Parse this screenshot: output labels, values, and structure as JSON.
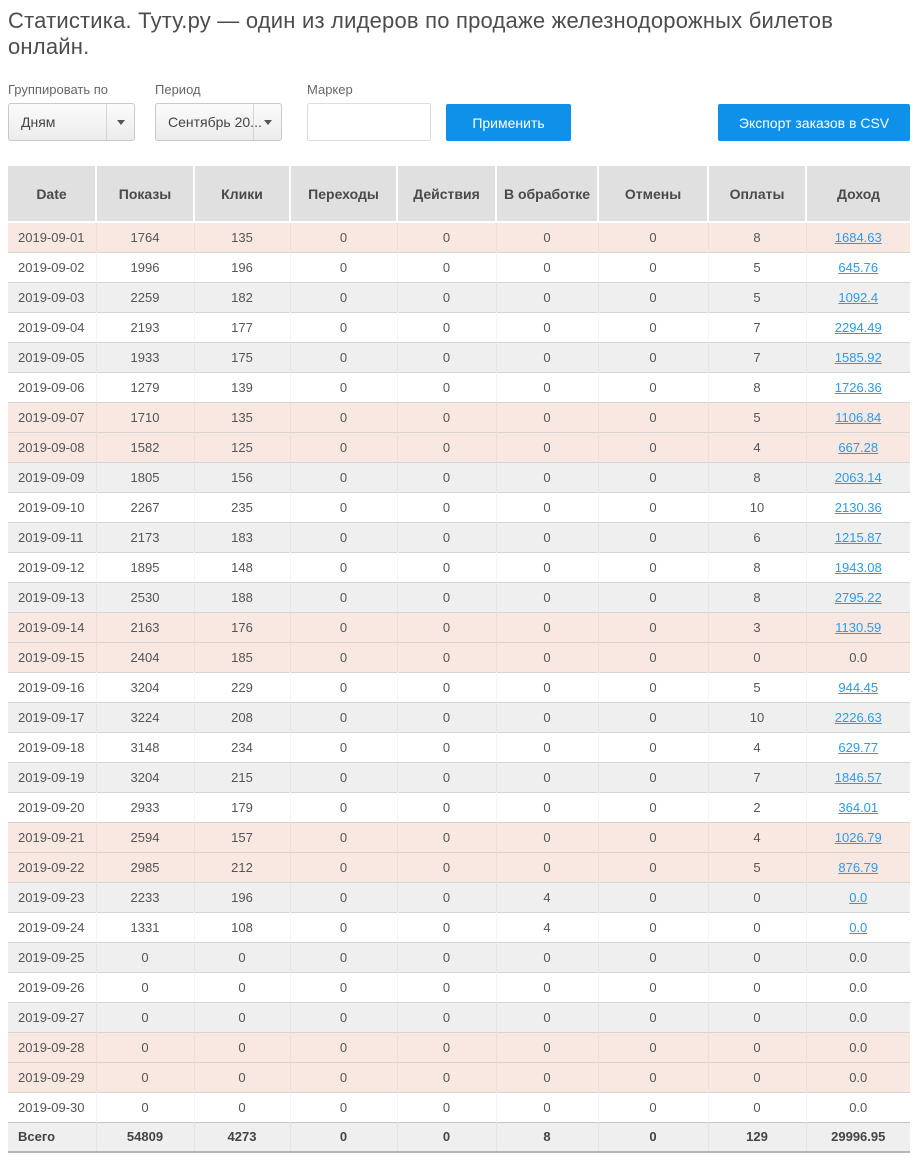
{
  "page": {
    "title": "Статистика. Туту.ру — один из лидеров по продаже железнодорожных билетов онлайн."
  },
  "filters": {
    "group_by": {
      "label": "Группировать по",
      "value": "Дням"
    },
    "period": {
      "label": "Период",
      "value": "Сентябрь 20..."
    },
    "marker": {
      "label": "Маркер",
      "value": "",
      "placeholder": ""
    },
    "apply_label": "Применить",
    "export_label": "Экспорт заказов в CSV"
  },
  "colors": {
    "accent_blue": "#0f90e9",
    "link_blue": "#2b9af0",
    "weekend_row": "#f8e8e1",
    "stripe_row": "#efefef",
    "header_bg": "#e0e0e0"
  },
  "icons": {
    "dropdown_caret": "chevron-down-icon"
  },
  "table": {
    "columns": [
      "Date",
      "Показы",
      "Клики",
      "Переходы",
      "Действия",
      "В обработке",
      "Отмены",
      "Оплаты",
      "Доход"
    ],
    "rows": [
      {
        "cells": [
          "2019-09-01",
          "1764",
          "135",
          "0",
          "0",
          "0",
          "0",
          "8"
        ],
        "income": "1684.63",
        "income_link": true,
        "variant": "weekend"
      },
      {
        "cells": [
          "2019-09-02",
          "1996",
          "196",
          "0",
          "0",
          "0",
          "0",
          "5"
        ],
        "income": "645.76",
        "income_link": true,
        "variant": "plain"
      },
      {
        "cells": [
          "2019-09-03",
          "2259",
          "182",
          "0",
          "0",
          "0",
          "0",
          "5"
        ],
        "income": "1092.4",
        "income_link": true,
        "variant": "stripe"
      },
      {
        "cells": [
          "2019-09-04",
          "2193",
          "177",
          "0",
          "0",
          "0",
          "0",
          "7"
        ],
        "income": "2294.49",
        "income_link": true,
        "variant": "plain"
      },
      {
        "cells": [
          "2019-09-05",
          "1933",
          "175",
          "0",
          "0",
          "0",
          "0",
          "7"
        ],
        "income": "1585.92",
        "income_link": true,
        "variant": "stripe"
      },
      {
        "cells": [
          "2019-09-06",
          "1279",
          "139",
          "0",
          "0",
          "0",
          "0",
          "8"
        ],
        "income": "1726.36",
        "income_link": true,
        "variant": "plain"
      },
      {
        "cells": [
          "2019-09-07",
          "1710",
          "135",
          "0",
          "0",
          "0",
          "0",
          "5"
        ],
        "income": "1106.84",
        "income_link": true,
        "variant": "weekend"
      },
      {
        "cells": [
          "2019-09-08",
          "1582",
          "125",
          "0",
          "0",
          "0",
          "0",
          "4"
        ],
        "income": "667.28",
        "income_link": true,
        "variant": "weekend"
      },
      {
        "cells": [
          "2019-09-09",
          "1805",
          "156",
          "0",
          "0",
          "0",
          "0",
          "8"
        ],
        "income": "2063.14",
        "income_link": true,
        "variant": "stripe"
      },
      {
        "cells": [
          "2019-09-10",
          "2267",
          "235",
          "0",
          "0",
          "0",
          "0",
          "10"
        ],
        "income": "2130.36",
        "income_link": true,
        "variant": "plain"
      },
      {
        "cells": [
          "2019-09-11",
          "2173",
          "183",
          "0",
          "0",
          "0",
          "0",
          "6"
        ],
        "income": "1215.87",
        "income_link": true,
        "variant": "stripe"
      },
      {
        "cells": [
          "2019-09-12",
          "1895",
          "148",
          "0",
          "0",
          "0",
          "0",
          "8"
        ],
        "income": "1943.08",
        "income_link": true,
        "variant": "plain"
      },
      {
        "cells": [
          "2019-09-13",
          "2530",
          "188",
          "0",
          "0",
          "0",
          "0",
          "8"
        ],
        "income": "2795.22",
        "income_link": true,
        "variant": "stripe"
      },
      {
        "cells": [
          "2019-09-14",
          "2163",
          "176",
          "0",
          "0",
          "0",
          "0",
          "3"
        ],
        "income": "1130.59",
        "income_link": true,
        "variant": "weekend"
      },
      {
        "cells": [
          "2019-09-15",
          "2404",
          "185",
          "0",
          "0",
          "0",
          "0",
          "0"
        ],
        "income": "0.0",
        "income_link": false,
        "variant": "weekend"
      },
      {
        "cells": [
          "2019-09-16",
          "3204",
          "229",
          "0",
          "0",
          "0",
          "0",
          "5"
        ],
        "income": "944.45",
        "income_link": true,
        "variant": "plain"
      },
      {
        "cells": [
          "2019-09-17",
          "3224",
          "208",
          "0",
          "0",
          "0",
          "0",
          "10"
        ],
        "income": "2226.63",
        "income_link": true,
        "variant": "stripe"
      },
      {
        "cells": [
          "2019-09-18",
          "3148",
          "234",
          "0",
          "0",
          "0",
          "0",
          "4"
        ],
        "income": "629.77",
        "income_link": true,
        "variant": "plain"
      },
      {
        "cells": [
          "2019-09-19",
          "3204",
          "215",
          "0",
          "0",
          "0",
          "0",
          "7"
        ],
        "income": "1846.57",
        "income_link": true,
        "variant": "stripe"
      },
      {
        "cells": [
          "2019-09-20",
          "2933",
          "179",
          "0",
          "0",
          "0",
          "0",
          "2"
        ],
        "income": "364.01",
        "income_link": true,
        "variant": "plain"
      },
      {
        "cells": [
          "2019-09-21",
          "2594",
          "157",
          "0",
          "0",
          "0",
          "0",
          "4"
        ],
        "income": "1026.79",
        "income_link": true,
        "variant": "weekend"
      },
      {
        "cells": [
          "2019-09-22",
          "2985",
          "212",
          "0",
          "0",
          "0",
          "0",
          "5"
        ],
        "income": "876.79",
        "income_link": true,
        "variant": "weekend"
      },
      {
        "cells": [
          "2019-09-23",
          "2233",
          "196",
          "0",
          "0",
          "4",
          "0",
          "0"
        ],
        "income": "0.0",
        "income_link": true,
        "variant": "stripe"
      },
      {
        "cells": [
          "2019-09-24",
          "1331",
          "108",
          "0",
          "0",
          "4",
          "0",
          "0"
        ],
        "income": "0.0",
        "income_link": true,
        "variant": "plain"
      },
      {
        "cells": [
          "2019-09-25",
          "0",
          "0",
          "0",
          "0",
          "0",
          "0",
          "0"
        ],
        "income": "0.0",
        "income_link": false,
        "variant": "stripe"
      },
      {
        "cells": [
          "2019-09-26",
          "0",
          "0",
          "0",
          "0",
          "0",
          "0",
          "0"
        ],
        "income": "0.0",
        "income_link": false,
        "variant": "plain"
      },
      {
        "cells": [
          "2019-09-27",
          "0",
          "0",
          "0",
          "0",
          "0",
          "0",
          "0"
        ],
        "income": "0.0",
        "income_link": false,
        "variant": "stripe"
      },
      {
        "cells": [
          "2019-09-28",
          "0",
          "0",
          "0",
          "0",
          "0",
          "0",
          "0"
        ],
        "income": "0.0",
        "income_link": false,
        "variant": "weekend"
      },
      {
        "cells": [
          "2019-09-29",
          "0",
          "0",
          "0",
          "0",
          "0",
          "0",
          "0"
        ],
        "income": "0.0",
        "income_link": false,
        "variant": "weekend"
      },
      {
        "cells": [
          "2019-09-30",
          "0",
          "0",
          "0",
          "0",
          "0",
          "0",
          "0"
        ],
        "income": "0.0",
        "income_link": false,
        "variant": "plain"
      }
    ],
    "total": {
      "label": "Всего",
      "cells": [
        "54809",
        "4273",
        "0",
        "0",
        "8",
        "0",
        "129",
        "29996.95"
      ]
    }
  }
}
